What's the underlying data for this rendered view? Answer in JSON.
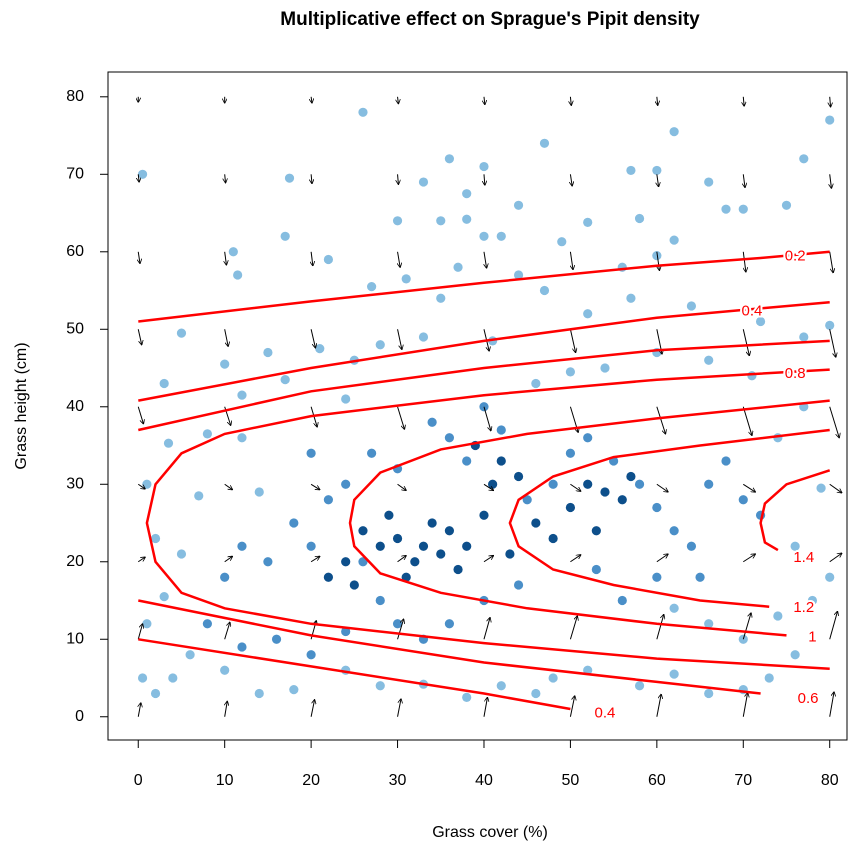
{
  "chart_data": {
    "type": "scatter",
    "title": "Multiplicative effect on Sprague's Pipit density",
    "x_label": "Grass cover (%)",
    "y_label": "Grass height (cm)",
    "xlim": [
      -3.5,
      82
    ],
    "ylim": [
      -3,
      83.2
    ],
    "xticks": [
      0,
      10,
      20,
      30,
      40,
      50,
      60,
      70,
      80
    ],
    "yticks": [
      0,
      10,
      20,
      30,
      40,
      50,
      60,
      70,
      80
    ],
    "points": [
      {
        "color": "#86bde0",
        "x": [
          0.5,
          26,
          62,
          80,
          47,
          36,
          40,
          57,
          77,
          17.5,
          33,
          60,
          66,
          38,
          44,
          70,
          68,
          75,
          30,
          35,
          38,
          52,
          58,
          62,
          17,
          11,
          40,
          42,
          49,
          60,
          11.5,
          31,
          37,
          44,
          56,
          22,
          27,
          35,
          47,
          52,
          57,
          64,
          72,
          77,
          80,
          5,
          15,
          21,
          28,
          33,
          41,
          25,
          10,
          17,
          3,
          12,
          24,
          8,
          3.5,
          12,
          1,
          7,
          14,
          2,
          5,
          3,
          1,
          0.5,
          2,
          4,
          6,
          10,
          14,
          18,
          24,
          28,
          33,
          38,
          42,
          46,
          48,
          52,
          58,
          62,
          66,
          70,
          73,
          76,
          62,
          66,
          70,
          74,
          78,
          80,
          76,
          79,
          74,
          77,
          71,
          66,
          60,
          54,
          50,
          46
        ],
        "y": [
          70,
          78,
          75.5,
          77,
          74,
          72,
          71,
          70.5,
          72,
          69.5,
          69,
          70.5,
          69,
          67.5,
          66,
          65.5,
          65.5,
          66,
          64,
          64,
          64.2,
          63.8,
          64.3,
          61.5,
          62,
          60,
          62,
          62,
          61.3,
          59.5,
          57,
          56.5,
          58,
          57,
          58,
          59,
          55.5,
          54,
          55,
          52,
          54,
          53,
          51,
          49,
          50.5,
          49.5,
          47,
          47.5,
          48,
          49,
          48.5,
          46,
          45.5,
          43.5,
          43,
          41.5,
          41,
          36.5,
          35.3,
          36,
          30,
          28.5,
          29,
          23,
          21,
          15.5,
          12,
          5,
          3,
          5,
          8,
          6,
          3,
          3.5,
          6,
          4,
          4.2,
          2.5,
          4,
          3,
          5,
          6,
          4,
          5.5,
          3,
          3.5,
          5,
          8,
          14,
          12,
          10,
          13,
          15,
          18,
          22,
          29.5,
          36,
          40,
          44,
          46,
          47,
          45,
          44.5,
          43
        ]
      },
      {
        "color": "#4a8fc8",
        "x": [
          18,
          20,
          22,
          24,
          26,
          28,
          15,
          12,
          10,
          8,
          30,
          33,
          36,
          40,
          44,
          45,
          48,
          50,
          52,
          55,
          58,
          60,
          62,
          64,
          66,
          68,
          70,
          72,
          65,
          60,
          56,
          53,
          38,
          36,
          34,
          40,
          42,
          30,
          27,
          20,
          16,
          20,
          24,
          12
        ],
        "y": [
          25,
          22,
          28,
          30,
          20,
          15,
          20,
          22,
          18,
          12,
          12,
          10,
          12,
          15,
          17,
          28,
          30,
          34,
          36,
          33,
          30,
          27,
          24,
          22,
          30,
          33,
          28,
          26,
          18,
          18,
          15,
          19,
          33,
          36,
          38,
          40,
          37,
          32,
          34,
          34,
          10,
          8,
          11,
          9
        ]
      },
      {
        "color": "#0d4f8b",
        "x": [
          30,
          32,
          33,
          31,
          34,
          35,
          28,
          29,
          36,
          38,
          40,
          41,
          42,
          39,
          44,
          46,
          48,
          50,
          52,
          54,
          56,
          57,
          53,
          22,
          24,
          26,
          25,
          37,
          43
        ],
        "y": [
          23,
          20,
          22,
          18,
          25,
          21,
          22,
          26,
          24,
          22,
          26,
          30,
          33,
          35,
          31,
          25,
          23,
          27,
          30,
          29,
          28,
          31,
          24,
          18,
          20,
          24,
          17,
          19,
          21
        ]
      }
    ],
    "arrows": {
      "color": "#000000",
      "x": [
        0,
        10,
        20,
        30,
        40,
        50,
        60,
        70,
        80,
        0,
        10,
        20,
        30,
        40,
        50,
        60,
        70,
        80,
        0,
        10,
        20,
        30,
        40,
        50,
        60,
        70,
        80,
        0,
        10,
        20,
        30,
        40,
        50,
        60,
        70,
        80,
        0,
        10,
        20,
        30,
        40,
        50,
        60,
        70,
        80,
        0,
        10,
        20,
        30,
        40,
        50,
        60,
        70,
        80,
        0,
        10,
        20,
        30,
        40,
        50,
        60,
        70,
        80,
        0,
        10,
        20,
        30,
        40,
        50,
        60,
        70,
        80,
        0,
        10,
        20,
        30,
        40,
        50,
        60,
        70,
        80
      ],
      "y": [
        0,
        0,
        0,
        0,
        0,
        0,
        0,
        0,
        0,
        10,
        10,
        10,
        10,
        10,
        10,
        10,
        10,
        10,
        20,
        20,
        20,
        20,
        20,
        20,
        20,
        20,
        20,
        30,
        30,
        30,
        30,
        30,
        30,
        30,
        30,
        30,
        40,
        40,
        40,
        40,
        40,
        40,
        40,
        40,
        40,
        50,
        50,
        50,
        50,
        50,
        50,
        50,
        50,
        50,
        60,
        60,
        60,
        60,
        60,
        60,
        60,
        60,
        60,
        70,
        70,
        70,
        70,
        70,
        70,
        70,
        70,
        70,
        80,
        80,
        80,
        80,
        80,
        80,
        80,
        80,
        80
      ],
      "dx": [
        0.3,
        0.3,
        0.4,
        0.4,
        0.4,
        0.5,
        0.5,
        0.5,
        0.5,
        0.5,
        0.6,
        0.6,
        0.7,
        0.7,
        0.8,
        0.8,
        0.9,
        0.9,
        0.8,
        0.9,
        1,
        1,
        1.1,
        1.2,
        1.3,
        1.4,
        1.4,
        0.8,
        0.9,
        1,
        1,
        1.1,
        1.2,
        1.3,
        1.4,
        1.4,
        0.6,
        0.7,
        0.7,
        0.8,
        0.8,
        0.9,
        1,
        1,
        1.1,
        0.4,
        0.4,
        0.5,
        0.5,
        0.6,
        0.6,
        0.6,
        0.7,
        0.7,
        0.2,
        0.2,
        0.2,
        0.3,
        0.3,
        0.3,
        0.3,
        0.3,
        0.4,
        0.1,
        0.1,
        0.1,
        0.1,
        0.1,
        0.2,
        0.2,
        0.2,
        0.2,
        0,
        0,
        0.1,
        0.1,
        0.1,
        0.1,
        0.1,
        0.1,
        0.1
      ],
      "dy": [
        1.8,
        2,
        2.2,
        2.3,
        2.5,
        2.7,
        2.9,
        3.1,
        3.2,
        2,
        2.2,
        2.4,
        2.6,
        2.8,
        3,
        3.2,
        3.4,
        3.6,
        0.6,
        0.7,
        0.7,
        0.8,
        0.8,
        0.9,
        1,
        1,
        1.1,
        -0.6,
        -0.7,
        -0.7,
        -0.8,
        -0.8,
        -0.9,
        -1,
        -1,
        -1.1,
        -2.2,
        -2.4,
        -2.6,
        -2.9,
        -3.1,
        -3.3,
        -3.5,
        -3.7,
        -4,
        -2,
        -2.2,
        -2.4,
        -2.6,
        -2.8,
        -3,
        -3.2,
        -3.4,
        -3.6,
        -1.5,
        -1.7,
        -1.8,
        -2,
        -2.1,
        -2.3,
        -2.4,
        -2.6,
        -2.7,
        -1,
        -1.1,
        -1.2,
        -1.3,
        -1.4,
        -1.5,
        -1.6,
        -1.7,
        -1.8,
        -0.7,
        -0.8,
        -0.8,
        -0.9,
        -1,
        -1.1,
        -1.1,
        -1.2,
        -1.3
      ]
    },
    "contour_color": "#ff0000",
    "contours": [
      {
        "level": 0.2,
        "x": [
          0,
          20,
          40,
          60,
          72,
          80
        ],
        "y": [
          51,
          53.6,
          56,
          58.2,
          59.2,
          60
        ],
        "label_x": 76,
        "label_y": 59.4
      },
      {
        "level": 0.4,
        "x": [
          0,
          20,
          40,
          60,
          80
        ],
        "y": [
          40.8,
          45,
          48.5,
          51.5,
          53.5
        ],
        "label_x": 71,
        "label_y": 52.3
      },
      {
        "level": 0.4,
        "x": [
          0,
          20,
          40,
          50
        ],
        "y": [
          10,
          6.5,
          3,
          1
        ],
        "label_x": 54,
        "label_y": 0.4
      },
      {
        "level": 0.6,
        "x": [
          0,
          20,
          40,
          60,
          80,
          null,
          0,
          20,
          40,
          60,
          72
        ],
        "y": [
          37,
          42,
          45,
          47.3,
          48.5,
          null,
          15,
          10.5,
          7,
          4.5,
          3
        ],
        "label_x": 77.5,
        "label_y": 2.3
      },
      {
        "level": 0.8,
        "x": [
          80,
          60,
          40,
          20,
          10,
          5,
          2,
          1,
          2,
          5,
          10,
          20,
          40,
          60,
          80
        ],
        "y": [
          44.8,
          43.5,
          41.5,
          38.8,
          36.5,
          34,
          30,
          25,
          20,
          16,
          14,
          12,
          9.5,
          7.5,
          6.2
        ],
        "label_x": 76,
        "label_y": 44.2
      },
      {
        "level": 1,
        "x": [
          80,
          60,
          45,
          35,
          28,
          25,
          24.5,
          25,
          28,
          35,
          45,
          60,
          75
        ],
        "y": [
          40.8,
          38.5,
          36.5,
          34.5,
          31.5,
          28,
          25,
          22,
          18.5,
          16,
          14,
          12,
          10.5
        ],
        "label_x": 78,
        "label_y": 10.2
      },
      {
        "level": 1.2,
        "x": [
          80,
          65,
          55,
          48,
          44,
          43,
          44,
          48,
          55,
          65,
          73
        ],
        "y": [
          37,
          35,
          33.5,
          31,
          28,
          25,
          22,
          19,
          17,
          15,
          14.2
        ],
        "label_x": 77,
        "label_y": 14
      },
      {
        "level": 1.4,
        "x": [
          80,
          75,
          72.5,
          72,
          72.5,
          74
        ],
        "y": [
          31.8,
          30,
          27.5,
          25,
          22.5,
          21.5
        ],
        "label_x": 77,
        "label_y": 20.5
      }
    ]
  }
}
